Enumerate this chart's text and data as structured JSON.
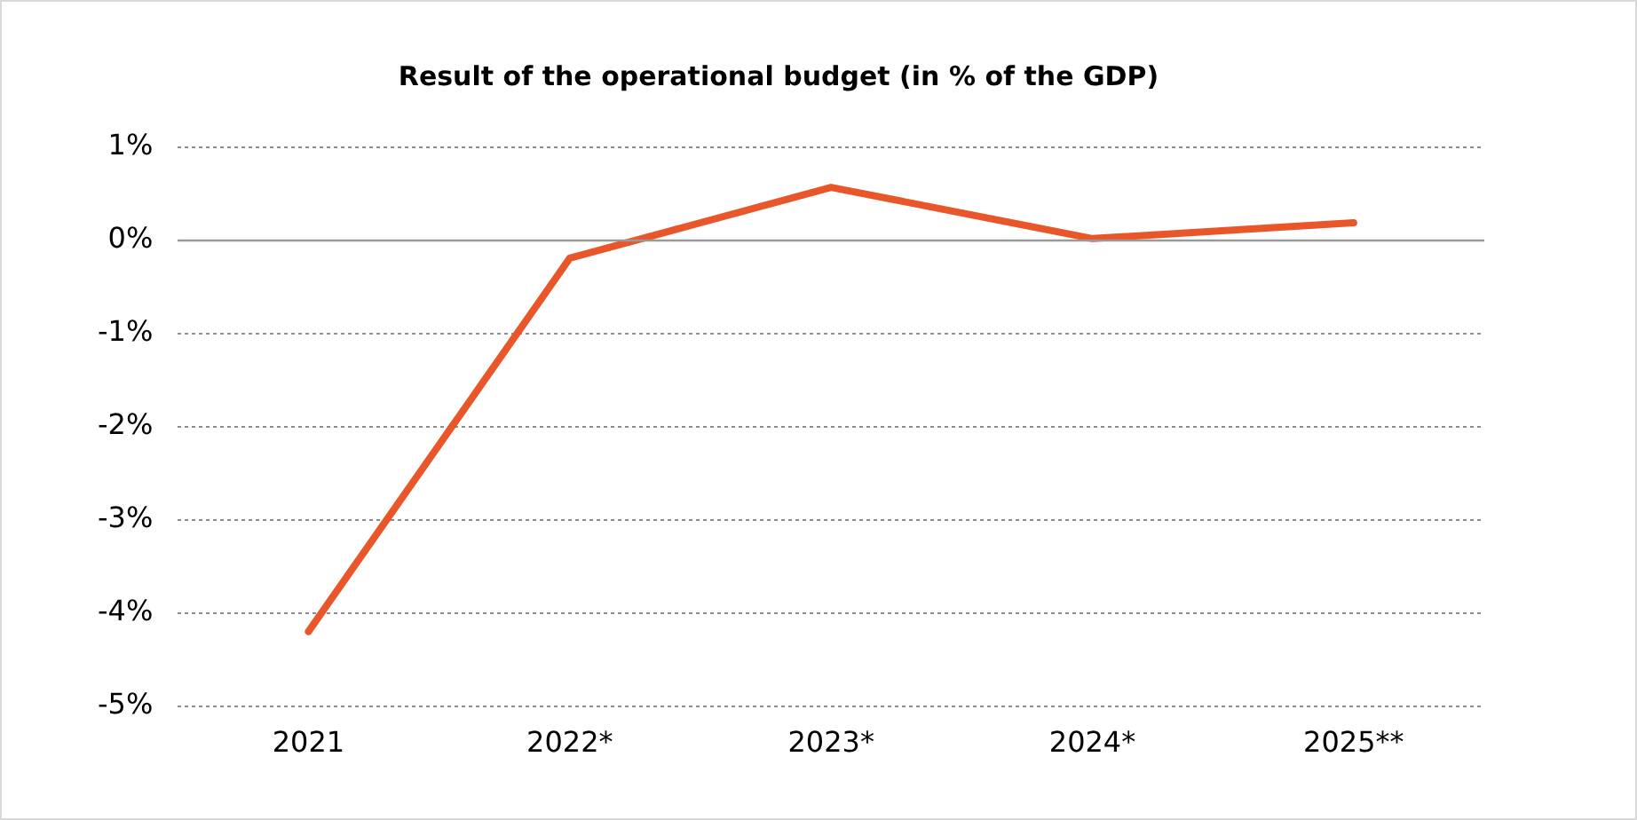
{
  "chart_data": {
    "type": "line",
    "title": "Result of the operational budget (in % of the GDP)",
    "categories": [
      "2021",
      "2022*",
      "2023*",
      "2024*",
      "2025**"
    ],
    "series": [
      {
        "color": "#e8562a",
        "values": [
          -4.2,
          -0.19,
          0.57,
          0.02,
          0.19
        ]
      }
    ],
    "ylim": [
      -5,
      1
    ],
    "yticks": [
      {
        "value": -5,
        "label": "-5%"
      },
      {
        "value": -4,
        "label": "-4%"
      },
      {
        "value": -3,
        "label": "-3%"
      },
      {
        "value": -2,
        "label": "-2%"
      },
      {
        "value": -1,
        "label": "-1%"
      },
      {
        "value": 0,
        "label": "0%"
      },
      {
        "value": 1,
        "label": "1%"
      }
    ],
    "grid": "y",
    "legend": false,
    "marker": "none",
    "line_style": "solid",
    "ref_lines": [
      {
        "axis": "y",
        "value": 0,
        "color": "#999999"
      }
    ]
  }
}
